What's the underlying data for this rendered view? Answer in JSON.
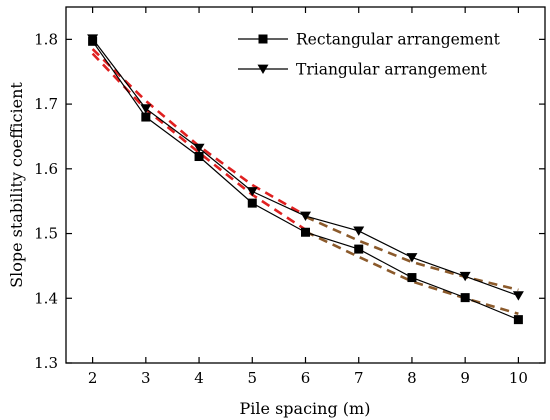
{
  "chart_data": {
    "type": "line",
    "xlabel": "Pile spacing (m)",
    "ylabel": "Slope stability coefficient",
    "xlim": [
      1.5,
      10.5
    ],
    "ylim": [
      1.3,
      1.85
    ],
    "x_ticks": [
      "2",
      "3",
      "4",
      "5",
      "6",
      "7",
      "8",
      "9",
      "10"
    ],
    "y_ticks": [
      "1.3",
      "1.4",
      "1.5",
      "1.6",
      "1.7",
      "1.8"
    ],
    "legend_position": "top-right",
    "x": [
      2,
      3,
      4,
      5,
      6,
      7,
      8,
      9,
      10
    ],
    "series": [
      {
        "name": "Rectangular arrangement",
        "marker": "square",
        "color": "#000000",
        "values": [
          1.797,
          1.68,
          1.619,
          1.547,
          1.502,
          1.476,
          1.432,
          1.401,
          1.367
        ]
      },
      {
        "name": "Triangular arrangement",
        "marker": "triangle-down",
        "color": "#000000",
        "values": [
          1.801,
          1.693,
          1.632,
          1.565,
          1.527,
          1.504,
          1.463,
          1.434,
          1.404
        ]
      }
    ],
    "fit_lines": [
      {
        "color": "#e02020",
        "style": "dashed",
        "x": [
          2,
          3,
          4,
          5,
          6
        ],
        "values": [
          1.785,
          1.705,
          1.635,
          1.575,
          1.528
        ]
      },
      {
        "color": "#e02020",
        "style": "dashed",
        "x": [
          2,
          3,
          4,
          5,
          6
        ],
        "values": [
          1.778,
          1.692,
          1.625,
          1.56,
          1.506
        ]
      },
      {
        "color": "#8b5a2b",
        "style": "dashed",
        "x": [
          6,
          7,
          8,
          9,
          10
        ],
        "values": [
          1.503,
          1.464,
          1.426,
          1.4,
          1.376
        ]
      },
      {
        "color": "#8b5a2b",
        "style": "dashed",
        "x": [
          6,
          7,
          8,
          9,
          10
        ],
        "values": [
          1.526,
          1.489,
          1.456,
          1.433,
          1.413
        ]
      }
    ]
  }
}
